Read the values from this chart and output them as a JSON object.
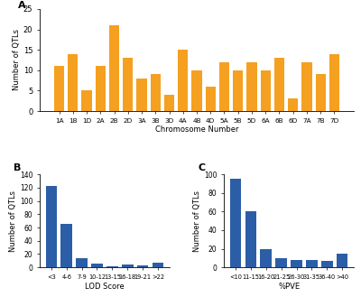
{
  "panel_A": {
    "categories": [
      "1A",
      "1B",
      "1D",
      "2A",
      "2B",
      "2D",
      "3A",
      "3B",
      "3D",
      "4A",
      "4B",
      "4D",
      "5A",
      "5B",
      "5D",
      "6A",
      "6B",
      "6D",
      "7A",
      "7B",
      "7D"
    ],
    "values": [
      11,
      14,
      5,
      11,
      21,
      13,
      8,
      9,
      4,
      15,
      10,
      6,
      12,
      10,
      12,
      10,
      13,
      3,
      12,
      9,
      14
    ],
    "bar_color": "#F5A020",
    "ylabel": "Number of QTLs",
    "xlabel": "Chromosome Number",
    "ylim": [
      0,
      25
    ],
    "yticks": [
      0,
      5,
      10,
      15,
      20,
      25
    ]
  },
  "panel_B": {
    "categories": [
      "<3",
      "4-6",
      "7-9",
      "10-12",
      "13-15",
      "16-18",
      "19-21",
      ">22"
    ],
    "values": [
      122,
      65,
      14,
      6,
      1,
      4,
      3,
      7
    ],
    "bar_color": "#2B5EA7",
    "ylabel": "Number of QTLs",
    "xlabel": "LOD Score",
    "ylim": [
      0,
      140
    ],
    "yticks": [
      0,
      20,
      40,
      60,
      80,
      100,
      120,
      140
    ]
  },
  "panel_C": {
    "categories": [
      "<10",
      "11-15",
      "16-20",
      "21-25",
      "26-30",
      "31-35",
      "36-40",
      ">40"
    ],
    "values": [
      95,
      60,
      20,
      10,
      8,
      8,
      7,
      15
    ],
    "bar_color": "#2B5EA7",
    "ylabel": "Number of QTLs",
    "xlabel": "%PVE",
    "ylim": [
      0,
      100
    ],
    "yticks": [
      0,
      20,
      40,
      60,
      80,
      100
    ]
  },
  "label_A": "A",
  "label_B": "B",
  "label_C": "C",
  "background_color": "#FFFFFF"
}
